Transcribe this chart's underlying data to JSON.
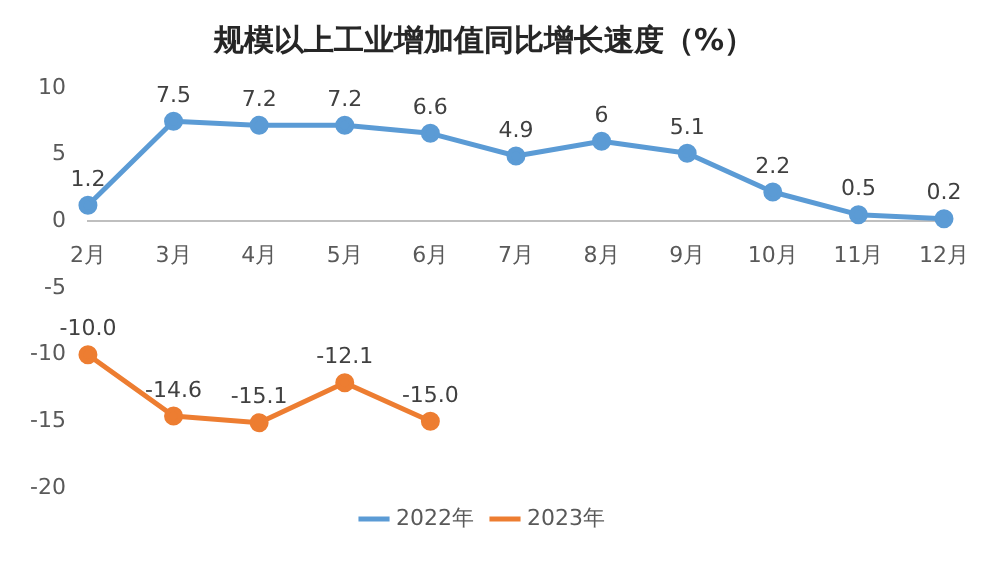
{
  "chart_data": {
    "type": "line",
    "title": "规模以上工业增加值同比增长速度（%）",
    "categories": [
      "2月",
      "3月",
      "4月",
      "5月",
      "6月",
      "7月",
      "8月",
      "9月",
      "10月",
      "11月",
      "12月"
    ],
    "series": [
      {
        "name": "2022年",
        "color": "#5b9bd5",
        "values": [
          1.2,
          7.5,
          7.2,
          7.2,
          6.6,
          4.9,
          6,
          5.1,
          2.2,
          0.5,
          0.2
        ],
        "value_labels": [
          "1.2",
          "7.5",
          "7.2",
          "7.2",
          "6.6",
          "4.9",
          "6",
          "5.1",
          "2.2",
          "0.5",
          "0.2"
        ]
      },
      {
        "name": "2023年",
        "color": "#ed7d31",
        "values": [
          -10.0,
          -14.6,
          -15.1,
          -12.1,
          -15.0,
          null,
          null,
          null,
          null,
          null,
          null
        ],
        "value_labels": [
          "-10.0",
          "-14.6",
          "-15.1",
          "-12.1",
          "-15.0",
          null,
          null,
          null,
          null,
          null,
          null
        ]
      }
    ],
    "ylim": [
      -20,
      10
    ],
    "yticks": [
      -20,
      -15,
      -10,
      -5,
      0,
      5,
      10
    ],
    "grid": false,
    "legend": "bottom",
    "marker": "circle",
    "line_style": "solid"
  }
}
